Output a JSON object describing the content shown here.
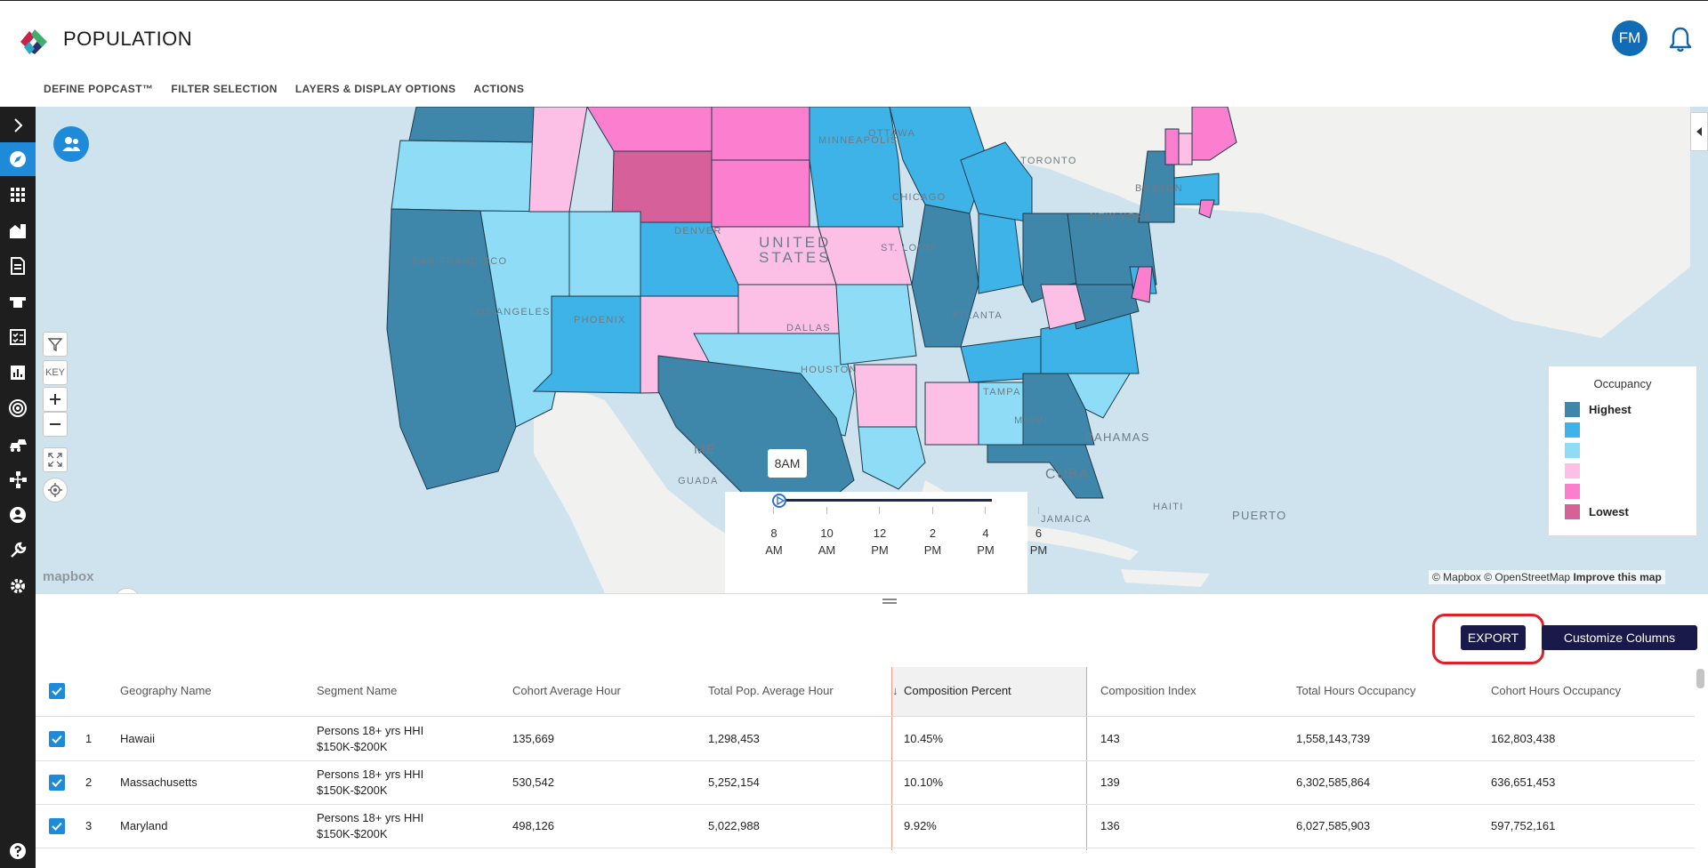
{
  "app": {
    "title": "POPULATION",
    "user_initials": "FM"
  },
  "nav": [
    "DEFINE POPCAST™",
    "FILTER SELECTION",
    "LAYERS & DISPLAY OPTIONS",
    "ACTIONS"
  ],
  "map": {
    "cities": [
      "OTTAWA",
      "TORONTO",
      "MINNEAPOLIS",
      "CHICAGO",
      "BOSTON",
      "NEW YORK",
      "DENVER",
      "UNITED",
      "STATES",
      "SAN FRANCISCO",
      "ST. LOUIS",
      "LOS ANGELES",
      "PHOENIX",
      "DALLAS",
      "ATLANTA",
      "HOUSTON",
      "TAMPA",
      "MIAMI",
      "BAHAMAS",
      "ME",
      "GUADA",
      "CUBA",
      "HAITI",
      "PUERTO",
      "JAMAICA"
    ],
    "key_label": "KEY",
    "legend": {
      "title": "Occupancy",
      "items": [
        {
          "label": "Highest",
          "color": "#3e87ab"
        },
        {
          "label": "",
          "color": "#3db3e8"
        },
        {
          "label": "",
          "color": "#8fdcf6"
        },
        {
          "label": "",
          "color": "#fcbfe6"
        },
        {
          "label": "",
          "color": "#fb7fce"
        },
        {
          "label": "Lowest",
          "color": "#d5609a"
        }
      ]
    },
    "timeline": {
      "current": "8AM",
      "ticks": [
        "8 AM",
        "10 AM",
        "12 PM",
        "2 PM",
        "4 PM",
        "6 PM"
      ]
    },
    "attribution": {
      "mapbox": "© Mapbox",
      "osm": "© OpenStreetMap",
      "improve": "Improve this map"
    },
    "mapbox_logo": "mapbox"
  },
  "toolbar": {
    "export": "EXPORT",
    "customize": "Customize Columns"
  },
  "table": {
    "columns": [
      "Geography Name",
      "Segment Name",
      "Cohort Average Hour",
      "Total Pop. Average Hour",
      "Composition Percent",
      "Composition Index",
      "Total Hours Occupancy",
      "Cohort Hours Occupancy"
    ],
    "sort_indicator": "↓",
    "rows": [
      {
        "n": "1",
        "geo": "Hawaii",
        "segment": "Persons 18+ yrs HHI $150K-$200K",
        "cohort_avg": "135,669",
        "total_avg": "1,298,453",
        "comp_pct": "10.45%",
        "comp_idx": "143",
        "total_hours": "1,558,143,739",
        "cohort_hours": "162,803,438"
      },
      {
        "n": "2",
        "geo": "Massachusetts",
        "segment": "Persons 18+ yrs HHI $150K-$200K",
        "cohort_avg": "530,542",
        "total_avg": "5,252,154",
        "comp_pct": "10.10%",
        "comp_idx": "139",
        "total_hours": "6,302,585,864",
        "cohort_hours": "636,651,453"
      },
      {
        "n": "3",
        "geo": "Maryland",
        "segment": "Persons 18+ yrs HHI $150K-$200K",
        "cohort_avg": "498,126",
        "total_avg": "5,022,988",
        "comp_pct": "9.92%",
        "comp_idx": "136",
        "total_hours": "6,027,585,903",
        "cohort_hours": "597,752,161"
      }
    ]
  }
}
